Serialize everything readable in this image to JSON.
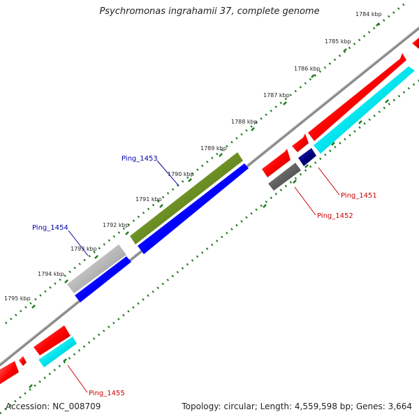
{
  "title": "Psychromonas ingrahamii 37, complete genome",
  "accession": "Accession: NC_008709",
  "footer": "Topology: circular; Length: 4,559,598 bp; Genes: 3,664",
  "ticks": [
    "1784 kbp",
    "1785 kbp",
    "1786 kbp",
    "1787 kbp",
    "1788 kbp",
    "1789 kbp",
    "1790 kbp",
    "1791 kbp",
    "1792 kbp",
    "1793 kbp",
    "1794 kbp",
    "1795 kbp"
  ],
  "genes": [
    {
      "label": "Ping_1453",
      "color": "#0000aa"
    },
    {
      "label": "Ping_1454",
      "color": "#0000aa"
    },
    {
      "label": "Ping_1451",
      "color": "#cc0000"
    },
    {
      "label": "Ping_1452",
      "color": "#cc0000"
    },
    {
      "label": "Ping_1455",
      "color": "#cc0000"
    }
  ],
  "colors": {
    "backbone": "#808080",
    "tick": "#1a7a1a",
    "red_feature": "#ff0000",
    "cyan_feature": "#00e5ee",
    "olive_feature": "#6b8e23",
    "blue_feature": "#0000ff",
    "grey_feature": "#b0b0b0",
    "darkgrey_feature": "#606060",
    "navy_feature": "#000080"
  }
}
